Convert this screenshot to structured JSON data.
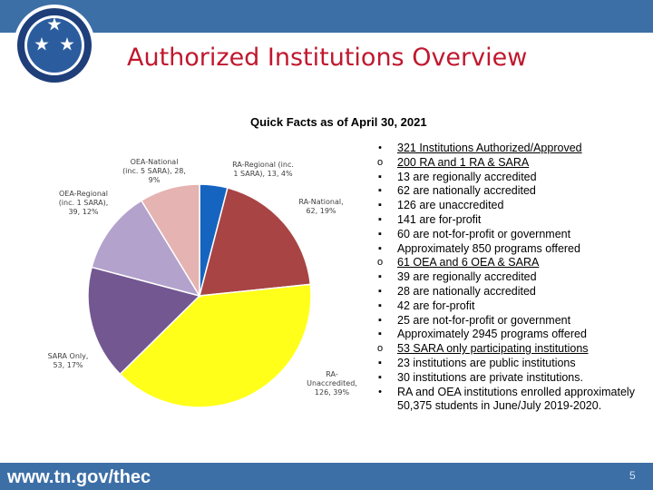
{
  "header": {
    "title": "Authorized Institutions Overview"
  },
  "chart": {
    "heading": "Quick Facts as of April 30, 2021",
    "labels": [
      "RA-Regional (inc. 1 SARA), 13, 4%",
      "RA-National, 62, 19%",
      "RA-Unaccredited, 126, 39%",
      "SARA Only, 53, 17%",
      "OEA-Regional (inc. 1 SARA), 39, 12%",
      "OEA-National (inc. 5 SARA), 28, 9%"
    ]
  },
  "chart_data": {
    "type": "pie",
    "title": "Quick Facts as of April 30, 2021",
    "categories": [
      "RA-Regional (inc. 1 SARA)",
      "RA-National",
      "RA-Unaccredited",
      "SARA Only",
      "OEA-Regional (inc. 1 SARA)",
      "OEA-National (inc. 5 SARA)"
    ],
    "values": [
      13,
      62,
      126,
      53,
      39,
      28
    ],
    "percentages": [
      4,
      19,
      39,
      17,
      12,
      9
    ],
    "colors": [
      "#1565c0",
      "#a84444",
      "#ffff1a",
      "#735791",
      "#b3a2cc",
      "#e5b3b1"
    ]
  },
  "facts": [
    {
      "marker": "•",
      "text": "321 Institutions Authorized/Approved",
      "underline": true
    },
    {
      "marker": "o",
      "text": "200 RA and 1 RA & SARA",
      "underline": true
    },
    {
      "marker": "▪",
      "text": "13 are regionally accredited",
      "underline": false
    },
    {
      "marker": "▪",
      "text": "62 are nationally accredited",
      "underline": false
    },
    {
      "marker": "▪",
      "text": "126 are unaccredited",
      "underline": false
    },
    {
      "marker": "▪",
      "text": "141 are for-profit",
      "underline": false
    },
    {
      "marker": "▪",
      "text": "60 are not-for-profit or government",
      "underline": false
    },
    {
      "marker": "▪",
      "text": "Approximately 850 programs offered",
      "underline": false
    },
    {
      "marker": "o",
      "text": "61 OEA and 6 OEA & SARA",
      "underline": true
    },
    {
      "marker": "▪",
      "text": "39 are regionally accredited",
      "underline": false
    },
    {
      "marker": "▪",
      "text": "28 are nationally accredited",
      "underline": false
    },
    {
      "marker": "▪",
      "text": "42 are for-profit",
      "underline": false
    },
    {
      "marker": "▪",
      "text": "25 are not-for-profit or government",
      "underline": false
    },
    {
      "marker": "▪",
      "text": "Approximately 2945 programs offered",
      "underline": false
    },
    {
      "marker": "o",
      "text": "53 SARA only participating institutions",
      "underline": true
    },
    {
      "marker": "▪",
      "text": "23 institutions are public institutions",
      "underline": false
    },
    {
      "marker": "▪",
      "text": "30 institutions are private institutions.",
      "underline": false
    },
    {
      "marker": "•",
      "text": "RA and OEA institutions enrolled approximately 50,375 students in June/July 2019-2020.",
      "underline": false
    }
  ],
  "footer": {
    "url": "www.tn.gov/thec",
    "page_number": "5"
  },
  "colors": {
    "bar": "#3d6fa7",
    "title": "#c0182e"
  }
}
